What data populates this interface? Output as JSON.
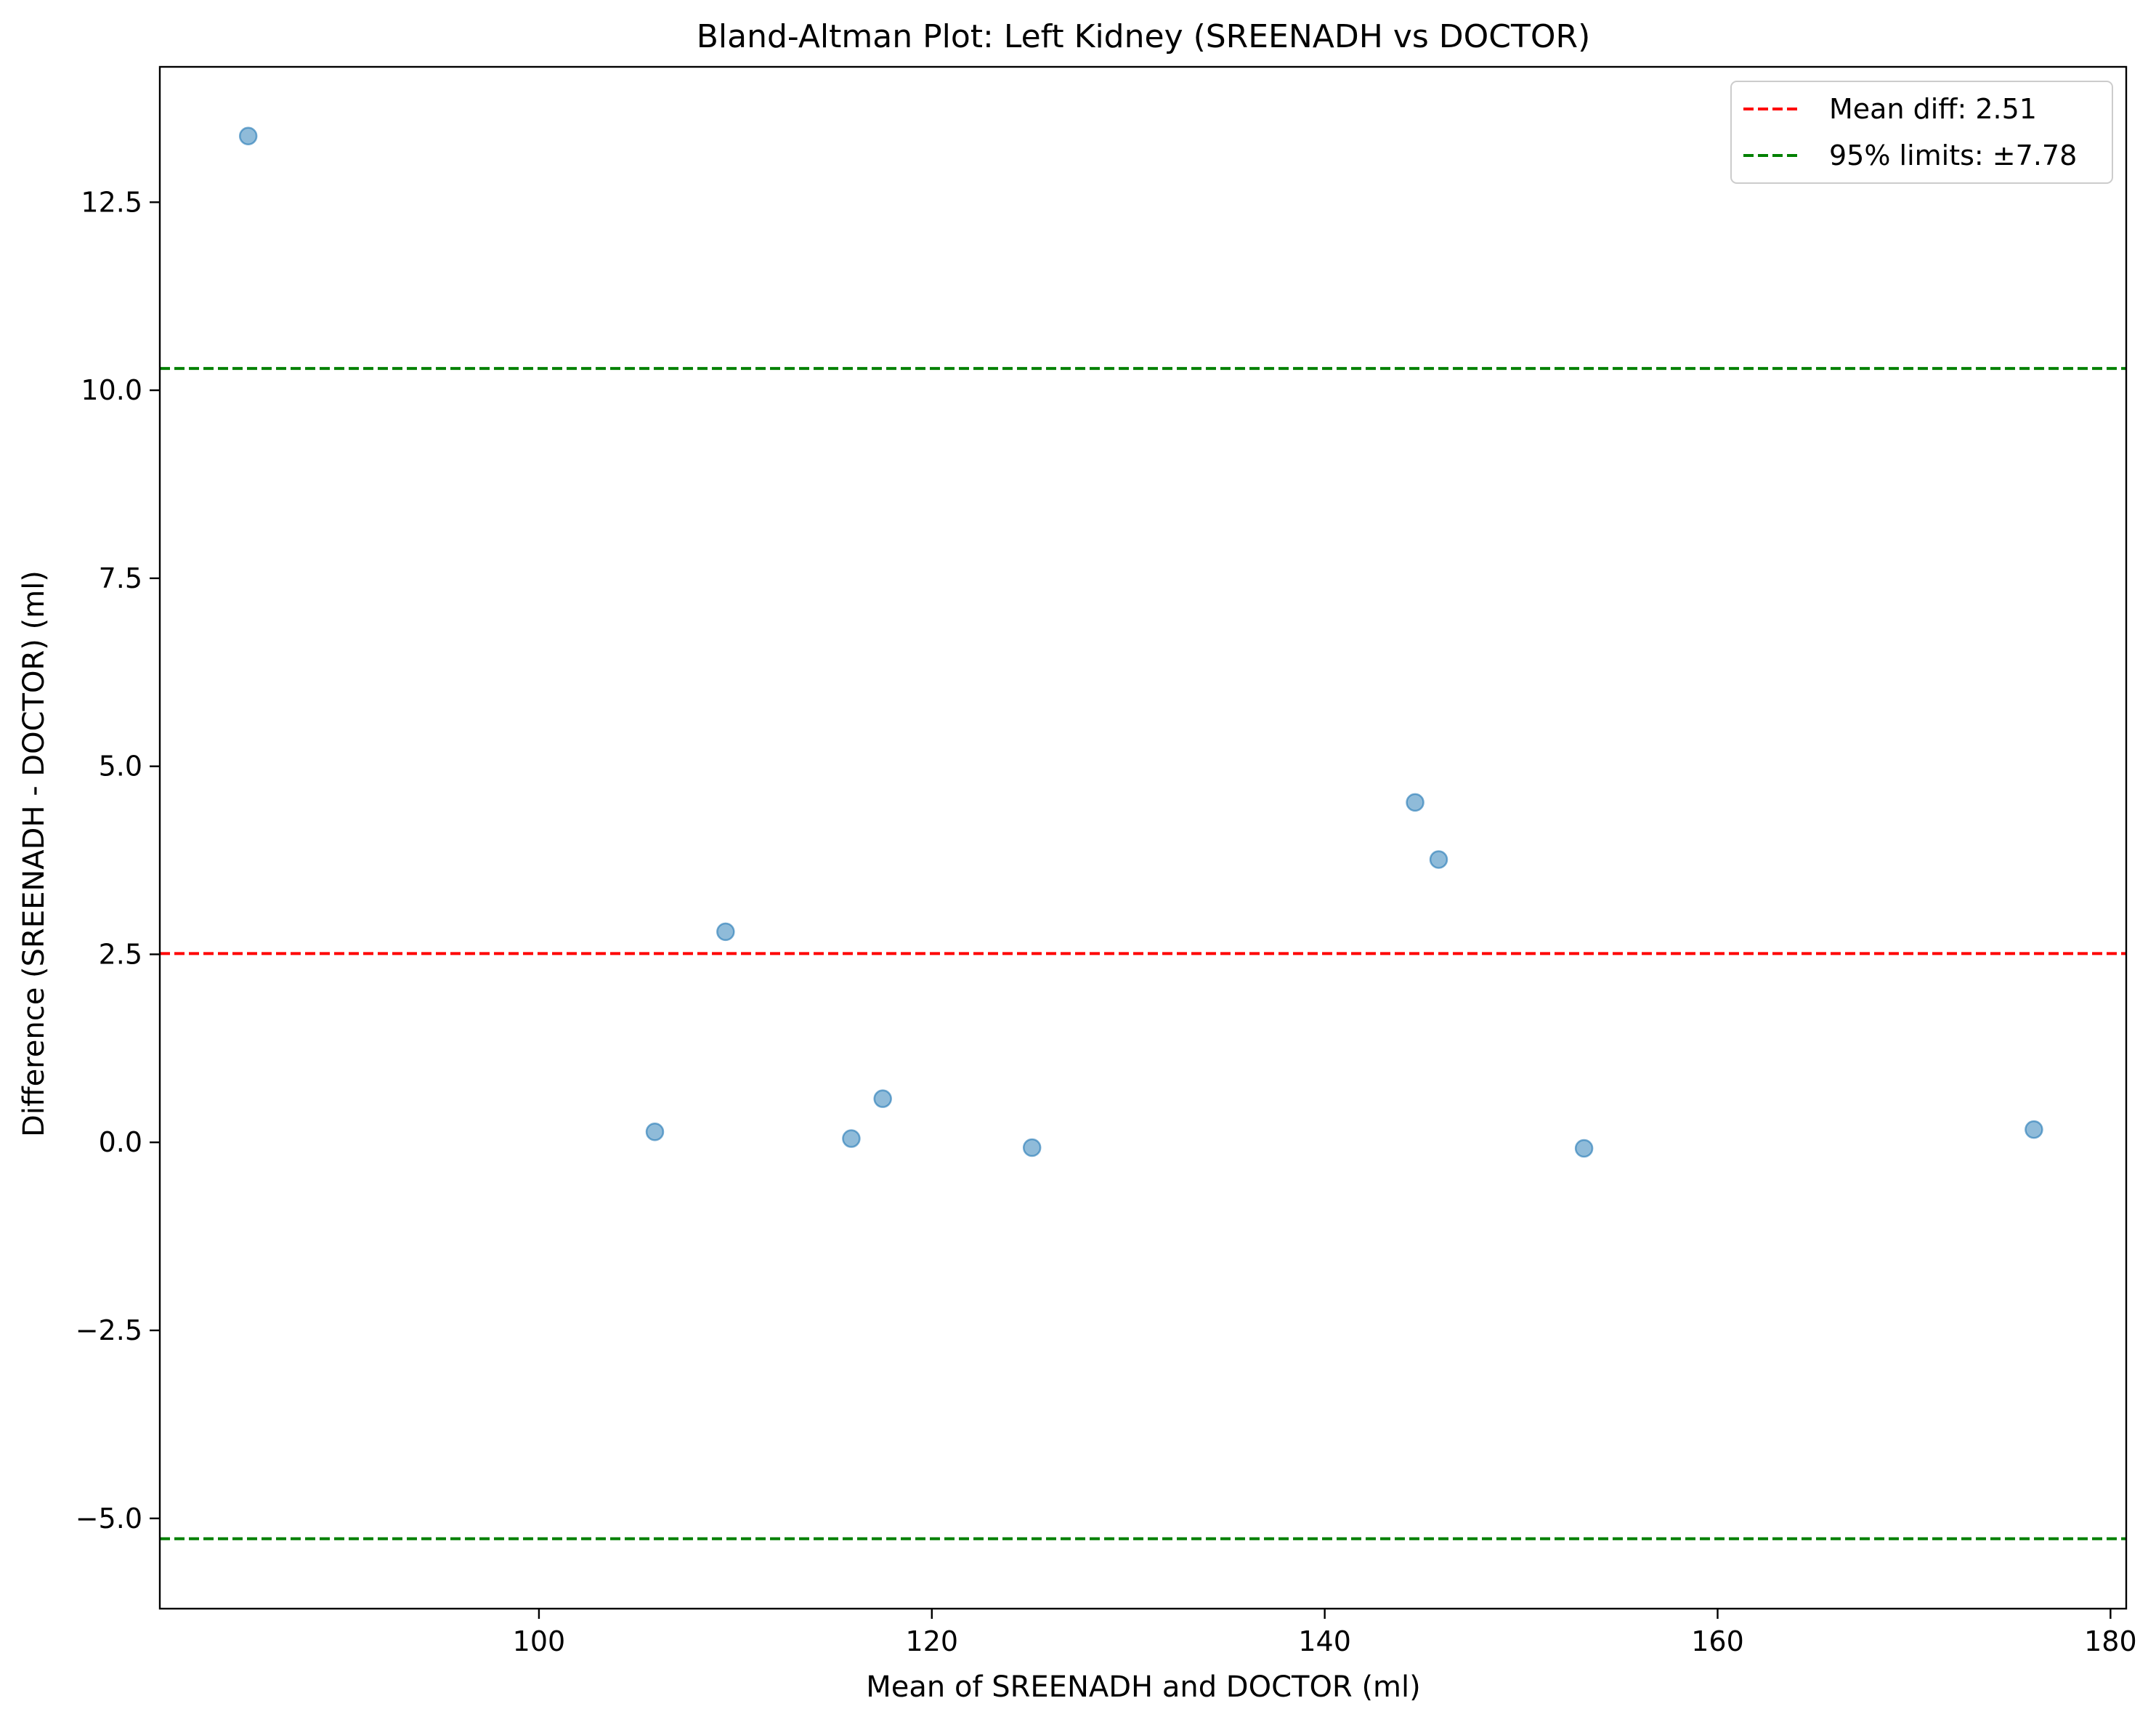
{
  "chart_data": {
    "type": "scatter",
    "title": "Bland-Altman Plot: Left Kidney (SREENADH vs DOCTOR)",
    "xlabel": "Mean of SREENADH and DOCTOR (ml)",
    "ylabel": "Difference (SREENADH - DOCTOR) (ml)",
    "xlim": [
      80.7,
      180.8
    ],
    "ylim": [
      -6.2,
      14.3
    ],
    "x_ticks": [
      100,
      120,
      140,
      160,
      180
    ],
    "x_tick_labels": [
      "100",
      "120",
      "140",
      "160",
      "180"
    ],
    "y_ticks": [
      -5.0,
      -2.5,
      0.0,
      2.5,
      5.0,
      7.5,
      10.0,
      12.5
    ],
    "y_tick_labels": [
      "−5.0",
      "−2.5",
      "0.0",
      "2.5",
      "5.0",
      "7.5",
      "10.0",
      "12.5"
    ],
    "grid": false,
    "legend_position": "top-right",
    "points": [
      {
        "x": 85.2,
        "y": 13.38
      },
      {
        "x": 105.9,
        "y": 0.14
      },
      {
        "x": 109.5,
        "y": 2.8
      },
      {
        "x": 115.9,
        "y": 0.05
      },
      {
        "x": 117.5,
        "y": 0.58
      },
      {
        "x": 125.1,
        "y": -0.07
      },
      {
        "x": 144.6,
        "y": 4.52
      },
      {
        "x": 145.8,
        "y": 3.76
      },
      {
        "x": 153.2,
        "y": -0.08
      },
      {
        "x": 176.1,
        "y": 0.17
      }
    ],
    "point_color": "#1f77b4",
    "reference_lines": [
      {
        "name": "mean-diff-line",
        "y": 2.51,
        "color": "#ff0000",
        "legend": "Mean diff: 2.51"
      },
      {
        "name": "upper-limit-line",
        "y": 10.29,
        "color": "#008000",
        "legend": "95% limits: ±7.78"
      },
      {
        "name": "lower-limit-line",
        "y": -5.27,
        "color": "#008000",
        "legend": ""
      }
    ]
  }
}
